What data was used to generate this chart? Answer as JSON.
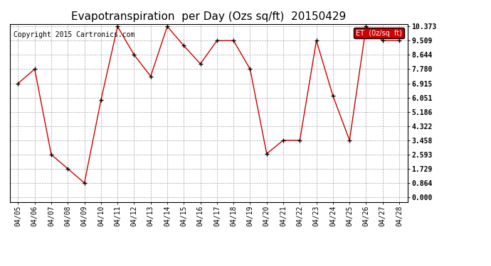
{
  "title": "Evapotranspiration  per Day (Ozs sq/ft)  20150429",
  "copyright": "Copyright 2015 Cartronics.com",
  "legend_label": "ET  (0z/sq  ft)",
  "dates": [
    "04/05",
    "04/06",
    "04/07",
    "04/08",
    "04/09",
    "04/10",
    "04/11",
    "04/12",
    "04/13",
    "04/14",
    "04/15",
    "04/16",
    "04/17",
    "04/18",
    "04/19",
    "04/20",
    "04/21",
    "04/22",
    "04/23",
    "04/24",
    "04/25",
    "04/26",
    "04/27",
    "04/28"
  ],
  "values": [
    6.915,
    7.78,
    2.593,
    1.729,
    0.864,
    5.9,
    10.373,
    8.644,
    7.344,
    10.373,
    9.2,
    8.1,
    9.509,
    9.509,
    7.78,
    2.64,
    3.458,
    3.458,
    9.509,
    6.15,
    3.458,
    10.373,
    9.509,
    9.509
  ],
  "yticks": [
    0.0,
    0.864,
    1.729,
    2.593,
    3.458,
    4.322,
    5.186,
    6.051,
    6.915,
    7.78,
    8.644,
    9.509,
    10.373
  ],
  "ymin": 0.0,
  "ymax": 10.373,
  "line_color": "#cc0000",
  "marker_color": "#000000",
  "bg_color": "#ffffff",
  "grid_color": "#aaaaaa",
  "title_fontsize": 11,
  "copyright_fontsize": 7,
  "tick_fontsize": 7,
  "legend_bg": "#cc0000",
  "legend_text_color": "#ffffff"
}
